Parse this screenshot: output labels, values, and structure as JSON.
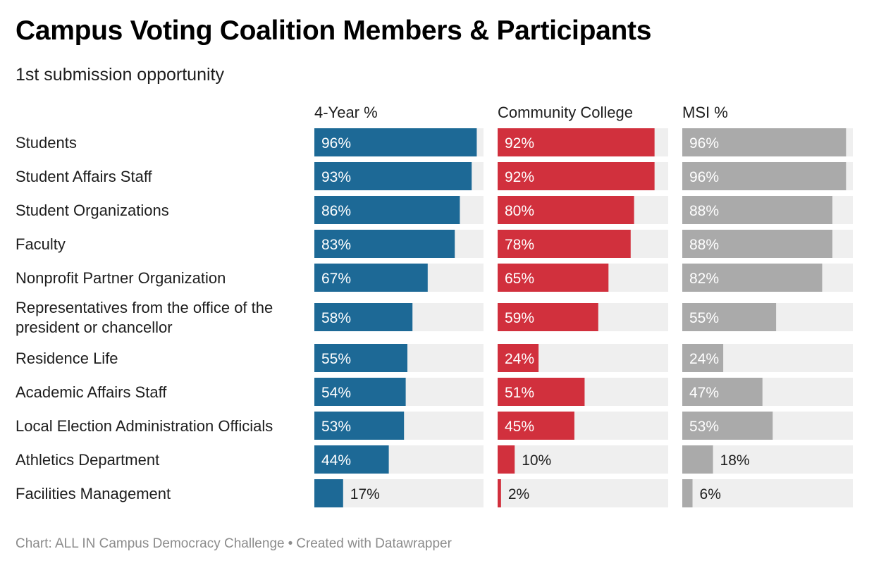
{
  "title": "Campus Voting Coalition Members & Participants",
  "subtitle": "1st submission opportunity",
  "footer": {
    "source": "Chart: ALL IN Campus Democracy Challenge",
    "separator": "•",
    "credit": "Created with Datawrapper"
  },
  "colors": {
    "four_year": "#1d6996",
    "community_college": "#d1303d",
    "msi": "#aaaaaa",
    "track": "#efefef"
  },
  "chart_data": {
    "type": "bar",
    "orientation": "horizontal",
    "layout": "small-multiples",
    "value_unit": "%",
    "xlim": [
      0,
      100
    ],
    "categories": [
      [
        "Students"
      ],
      [
        "Student Affairs Staff"
      ],
      [
        "Student Organizations"
      ],
      [
        "Faculty"
      ],
      [
        "Nonprofit Partner Organization"
      ],
      [
        "Representatives from the office of the",
        "president or chancellor"
      ],
      [
        "Residence Life"
      ],
      [
        "Academic Affairs Staff"
      ],
      [
        "Local Election Administration Officials"
      ],
      [
        "Athletics Department"
      ],
      [
        "Facilities Management"
      ]
    ],
    "series": [
      {
        "name": "4-Year %",
        "color": "#1d6996",
        "values": [
          96,
          93,
          86,
          83,
          67,
          58,
          55,
          54,
          53,
          44,
          17
        ]
      },
      {
        "name": "Community College",
        "color": "#d1303d",
        "values": [
          92,
          92,
          80,
          78,
          65,
          59,
          24,
          51,
          45,
          10,
          2
        ]
      },
      {
        "name": "MSI %",
        "color": "#aaaaaa",
        "values": [
          96,
          96,
          88,
          88,
          82,
          55,
          24,
          47,
          53,
          18,
          6
        ]
      }
    ]
  }
}
